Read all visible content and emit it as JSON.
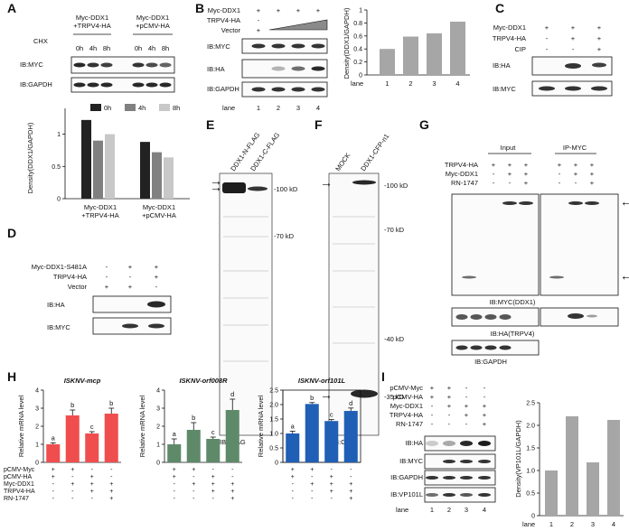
{
  "panel_A": {
    "letter": "A",
    "groups": [
      "Myc-DDX1\n+TRPV4-HA",
      "Myc-DDX1\n+pCMV-HA"
    ],
    "cond": "CHX",
    "times": [
      "0h",
      "4h",
      "8h",
      "0h",
      "4h",
      "8h"
    ],
    "blots": [
      "IB:MYC",
      "IB:GAPDH"
    ],
    "legend": [
      "0h",
      "4h",
      "8h"
    ],
    "ylabel": "Density(DDX1/GAPDH)",
    "xcats": [
      "Myc-DDX1\n+TRPV4-HA",
      "Myc-DDX1\n+pCMV-HA"
    ],
    "colors": [
      "#222222",
      "#808080",
      "#c8c8c8"
    ],
    "values": [
      [
        1.22,
        0.9,
        1.0
      ],
      [
        0.88,
        0.72,
        0.64
      ]
    ]
  },
  "panel_B": {
    "letter": "B",
    "rows": [
      {
        "label": "Myc-DDX1",
        "marks": [
          "+",
          "+",
          "+",
          "+"
        ]
      },
      {
        "label": "TRPV4-HA",
        "marks": [
          "-",
          "",
          "",
          ""
        ]
      },
      {
        "label": "Vector",
        "marks": [
          "+",
          "",
          "",
          ""
        ]
      }
    ],
    "blots": [
      "IB:MYC",
      "IB:HA",
      "IB:GAPDH"
    ],
    "lane_label": "lane",
    "lanes": [
      "1",
      "2",
      "3",
      "4"
    ],
    "ylabel": "Density(DDX1/GAPDH)",
    "bar_color": "#a6a6a6",
    "values": [
      0.4,
      0.59,
      0.64,
      0.82
    ]
  },
  "panel_C": {
    "letter": "C",
    "rows": [
      {
        "label": "Myc-DDX1",
        "marks": [
          "+",
          "+",
          "+"
        ]
      },
      {
        "label": "TRPV4-HA",
        "marks": [
          "-",
          "+",
          "+"
        ]
      },
      {
        "label": "CIP",
        "marks": [
          "-",
          "-",
          "+"
        ]
      }
    ],
    "blots": [
      "IB:HA",
      "IB:MYC"
    ]
  },
  "panel_D": {
    "letter": "D",
    "rows": [
      {
        "label": "Myc-DDX1-S481A",
        "marks": [
          "-",
          "+",
          "+"
        ]
      },
      {
        "label": "TRPV4-HA",
        "marks": [
          "-",
          "-",
          "+"
        ]
      },
      {
        "label": "Vector",
        "marks": [
          "+",
          "+",
          "-"
        ]
      }
    ],
    "blots": [
      "IB:HA",
      "IB:MYC"
    ]
  },
  "panel_E": {
    "letter": "E",
    "lanes": [
      "DDX1-N-FLAG",
      "DDX1-C-FLAG"
    ],
    "markers": [
      "-100 kD",
      "-70 kD"
    ],
    "caption": "IB:FLAG"
  },
  "panel_F": {
    "letter": "F",
    "lanes": [
      "MOCK",
      "DDX1-CFP-n1"
    ],
    "markers": [
      "-100 kD",
      "-70 kD",
      "-40 kD",
      "-35 kD"
    ],
    "caption": "IB:CFP"
  },
  "panel_G": {
    "letter": "G",
    "headers": [
      "Input",
      "IP-MYC"
    ],
    "rows": [
      {
        "label": "TRPV4-HA",
        "marks": [
          "+",
          "+",
          "+",
          "+",
          "+",
          "+"
        ]
      },
      {
        "label": "Myc-DDX1",
        "marks": [
          "-",
          "+",
          "+",
          "-",
          "+",
          "+"
        ]
      },
      {
        "label": "RN-1747",
        "marks": [
          "-",
          "-",
          "+",
          "-",
          "-",
          "+"
        ]
      }
    ],
    "blots": [
      "IB:MYC(DDX1)",
      "IB:HA(TRPV4)",
      "IB:GAPDH"
    ]
  },
  "panel_H": {
    "letter": "H",
    "ylabel": "Relative mRNA level",
    "rows": [
      {
        "label": "pCMV-Myc",
        "marks": [
          "+",
          "+",
          "-",
          "-"
        ]
      },
      {
        "label": "pCMV-HA",
        "marks": [
          "+",
          "-",
          "+",
          "-"
        ]
      },
      {
        "label": "Myc-DDX1",
        "marks": [
          "-",
          "+",
          "+",
          "+"
        ]
      },
      {
        "label": "TRPV4-HA",
        "marks": [
          "-",
          "-",
          "+",
          "+"
        ]
      },
      {
        "label": "RN-1747",
        "marks": [
          "-",
          "-",
          "-",
          "+"
        ]
      }
    ],
    "charts": [
      {
        "title": "ISKNV-mcp",
        "color": "#f04e4e",
        "ylim": [
          0,
          4
        ],
        "yticks": [
          "0",
          "1",
          "2",
          "3",
          "4"
        ],
        "values": [
          1.0,
          2.6,
          1.6,
          2.7
        ],
        "errors": [
          0.08,
          0.3,
          0.1,
          0.3
        ],
        "letters": [
          "a",
          "b",
          "c",
          "b"
        ]
      },
      {
        "title": "ISKNV-orf008R",
        "color": "#5f8a6a",
        "ylim": [
          0,
          4
        ],
        "yticks": [
          "0",
          "1",
          "2",
          "3",
          "4"
        ],
        "values": [
          1.0,
          1.8,
          1.3,
          2.9
        ],
        "errors": [
          0.3,
          0.4,
          0.1,
          0.6
        ],
        "letters": [
          "a",
          "b",
          "c",
          "d"
        ]
      },
      {
        "title": "ISKNV-orf101L",
        "color": "#1f5fb5",
        "ylim": [
          0,
          2.5
        ],
        "yticks": [
          "0",
          "0.5",
          "1.0",
          "1.5",
          "2.0",
          "2.5"
        ],
        "values": [
          1.0,
          2.02,
          1.43,
          1.78
        ],
        "errors": [
          0.08,
          0.05,
          0.05,
          0.1
        ],
        "letters": [
          "a",
          "b",
          "c",
          "d"
        ]
      }
    ]
  },
  "panel_I": {
    "letter": "I",
    "rows": [
      {
        "label": "pCMV-Myc",
        "marks": [
          "+",
          "+",
          "-",
          "-"
        ]
      },
      {
        "label": "pCMV-HA",
        "marks": [
          "+",
          "+",
          "-",
          "-"
        ]
      },
      {
        "label": "Myc-DDX1",
        "marks": [
          "-",
          "+",
          "+",
          "+"
        ]
      },
      {
        "label": "TRPV4-HA",
        "marks": [
          "-",
          "-",
          "+",
          "+"
        ]
      },
      {
        "label": "RN-1747",
        "marks": [
          "-",
          "-",
          "-",
          "+"
        ]
      }
    ],
    "blots": [
      "IB:HA",
      "IB:MYC",
      "IB:GAPDH",
      "IB:VP101L"
    ],
    "lane_label": "lane",
    "lanes": [
      "1",
      "2",
      "3",
      "4"
    ],
    "ylabel": "Density(VP101L/GAPDH)",
    "bar_color": "#a6a6a6",
    "values": [
      1.0,
      2.2,
      1.18,
      2.12
    ]
  },
  "chart_data": [
    {
      "type": "bar",
      "title": "",
      "xlabel": "",
      "ylabel": "Density(DDX1/GAPDH)",
      "categories": [
        "Myc-DDX1 +TRPV4-HA",
        "Myc-DDX1 +pCMV-HA"
      ],
      "series": [
        {
          "name": "0h",
          "values": [
            1.22,
            0.88
          ]
        },
        {
          "name": "4h",
          "values": [
            0.9,
            0.72
          ]
        },
        {
          "name": "8h",
          "values": [
            1.0,
            0.64
          ]
        }
      ],
      "legend": "top"
    },
    {
      "type": "bar",
      "title": "",
      "xlabel": "lane",
      "ylabel": "Density(DDX1/GAPDH)",
      "categories": [
        "1",
        "2",
        "3",
        "4"
      ],
      "values": [
        0.4,
        0.59,
        0.64,
        0.82
      ]
    },
    {
      "type": "bar",
      "title": "ISKNV-mcp",
      "ylabel": "Relative mRNA level",
      "categories": [
        "1",
        "2",
        "3",
        "4"
      ],
      "values": [
        1.0,
        2.6,
        1.6,
        2.7
      ],
      "ylim": [
        0,
        4
      ]
    },
    {
      "type": "bar",
      "title": "ISKNV-orf008R",
      "ylabel": "Relative mRNA level",
      "categories": [
        "1",
        "2",
        "3",
        "4"
      ],
      "values": [
        1.0,
        1.8,
        1.3,
        2.9
      ],
      "ylim": [
        0,
        4
      ]
    },
    {
      "type": "bar",
      "title": "ISKNV-orf101L",
      "ylabel": "Relative mRNA level",
      "categories": [
        "1",
        "2",
        "3",
        "4"
      ],
      "values": [
        1.0,
        2.02,
        1.43,
        1.78
      ],
      "ylim": [
        0,
        2.5
      ]
    },
    {
      "type": "bar",
      "title": "",
      "xlabel": "lane",
      "ylabel": "Density(VP101L/GAPDH)",
      "categories": [
        "1",
        "2",
        "3",
        "4"
      ],
      "values": [
        1.0,
        2.2,
        1.18,
        2.12
      ]
    }
  ]
}
